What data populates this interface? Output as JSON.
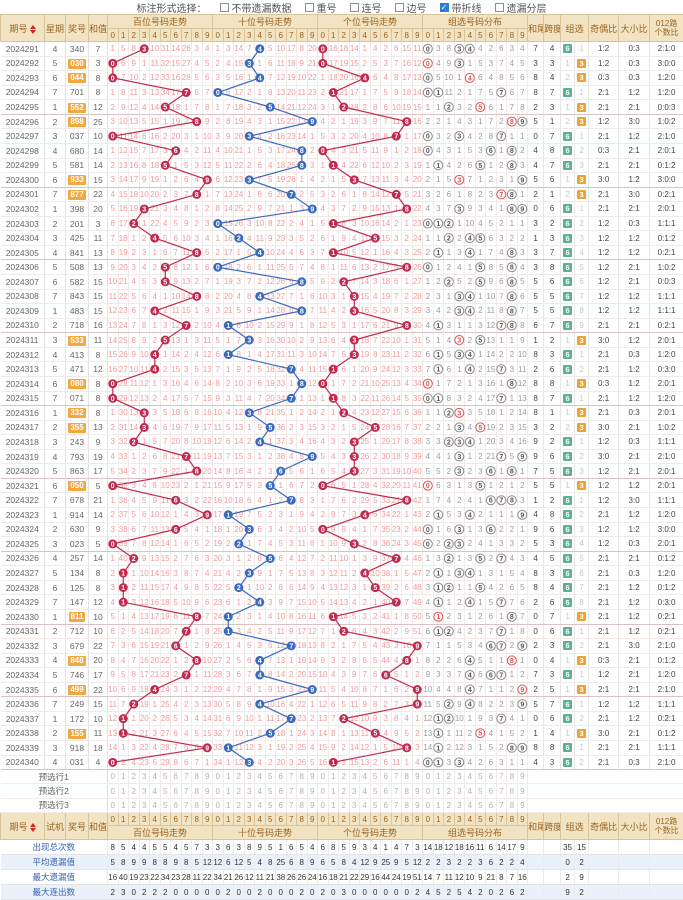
{
  "toolbar": {
    "label": "标注形式选择：",
    "options": [
      {
        "label": "不带遗漏数据",
        "checked": false
      },
      {
        "label": "重号",
        "checked": false
      },
      {
        "label": "连号",
        "checked": false
      },
      {
        "label": "边号",
        "checked": false
      },
      {
        "label": "带折线",
        "checked": true
      },
      {
        "label": "遗漏分层",
        "checked": false
      }
    ]
  },
  "header": {
    "issue": "期号",
    "week": "星期",
    "num": "奖号",
    "sum": "和值",
    "sections": [
      "百位号码走势",
      "十位号码走势",
      "个位号码走势",
      "组选号码分布"
    ],
    "digits": [
      "0",
      "1",
      "2",
      "3",
      "4",
      "5",
      "6",
      "7",
      "8",
      "9"
    ],
    "tail": "和尾",
    "span": "跨度",
    "group": "组选",
    "odd_even": "奇偶比",
    "big_small": "大小比",
    "r012_line1": "012路",
    "r012_line2": "个数比"
  },
  "footer_header": {
    "issue": "期号",
    "week": "试机",
    "num": "奖号",
    "sum": "和值"
  },
  "preselect_rows": [
    "预选行1",
    "预选行2",
    "预选行3"
  ],
  "stats_labels": [
    "出现总次数",
    "平均遗漏值",
    "最大遗漏值",
    "最大连出数"
  ],
  "colors": {
    "red_circle": "#c02a4f",
    "blue_circle": "#3a6abf",
    "miss_pink": "#f09a9a",
    "miss_gray": "#9b9b9b",
    "ring_gray": "#8a8a8a",
    "ring_red": "#e05252",
    "header_bg": "#f2e3c3",
    "header_text": "#9a6420",
    "badge_green": "#5fae96",
    "badge_orange": "#eba338",
    "hl_bg": "#f3a73f",
    "check_blue": "#2e7cd6"
  },
  "chart_data": {
    "type": "table",
    "row_columns": [
      "issue",
      "week",
      "num",
      "sum",
      "tail",
      "span",
      "zu_type",
      "zu_miss",
      "odd_even",
      "big_small",
      "r012"
    ],
    "rows": [
      [
        "2024291",
        "4",
        "340",
        7,
        7,
        4,
        "6",
        1,
        "1:2",
        "0:3",
        "2:1:0"
      ],
      [
        "2024292",
        "5",
        "030",
        3,
        3,
        3,
        "3",
        1,
        "1:2",
        "0:3",
        "3:0:0"
      ],
      [
        "2024293",
        "6",
        "044",
        8,
        8,
        4,
        "3",
        2,
        "0:3",
        "0:3",
        "1:2:0"
      ],
      [
        "2024294",
        "7",
        "701",
        8,
        8,
        7,
        "6",
        1,
        "2:1",
        "1:2",
        "1:2:0"
      ],
      [
        "2024295",
        "1",
        "552",
        12,
        2,
        3,
        "3",
        1,
        "2:1",
        "2:1",
        "0:0:3"
      ],
      [
        "2024296",
        "2",
        "898",
        25,
        5,
        1,
        "3",
        2,
        "1:2",
        "3:0",
        "1:0:2"
      ],
      [
        "2024297",
        "3",
        "037",
        10,
        0,
        7,
        "6",
        1,
        "2:1",
        "1:2",
        "2:1:0"
      ],
      [
        "2024298",
        "4",
        "680",
        14,
        4,
        8,
        "6",
        2,
        "0:3",
        "2:1",
        "2:0:1"
      ],
      [
        "2024299",
        "5",
        "581",
        14,
        4,
        7,
        "6",
        3,
        "2:1",
        "2:1",
        "0:1:2"
      ],
      [
        "2024300",
        "6",
        "933",
        15,
        5,
        6,
        "3",
        1,
        "3:0",
        "1:2",
        "3:0:0"
      ],
      [
        "2024301",
        "7",
        "877",
        22,
        2,
        1,
        "3",
        2,
        "2:1",
        "3:0",
        "0:2:1"
      ],
      [
        "2024302",
        "1",
        "398",
        20,
        0,
        6,
        "6",
        1,
        "2:1",
        "2:1",
        "2:0:1"
      ],
      [
        "2024303",
        "2",
        "201",
        3,
        3,
        2,
        "6",
        2,
        "1:2",
        "0:3",
        "1:1:1"
      ],
      [
        "2024304",
        "3",
        "425",
        11,
        1,
        3,
        "6",
        3,
        "1:2",
        "1:2",
        "0:1:2"
      ],
      [
        "2024305",
        "4",
        "841",
        13,
        3,
        7,
        "6",
        4,
        "1:2",
        "1:2",
        "0:2:1"
      ],
      [
        "2024306",
        "5",
        "508",
        13,
        3,
        8,
        "6",
        5,
        "1:2",
        "2:1",
        "1:0:2"
      ],
      [
        "2024307",
        "6",
        "582",
        15,
        5,
        6,
        "6",
        6,
        "1:2",
        "2:1",
        "0:0:3"
      ],
      [
        "2024308",
        "7",
        "843",
        15,
        5,
        5,
        "6",
        7,
        "1:2",
        "1:2",
        "1:1:1"
      ],
      [
        "2024309",
        "1",
        "483",
        15,
        5,
        5,
        "6",
        8,
        "1:2",
        "1:2",
        "1:1:1"
      ],
      [
        "2024310",
        "2",
        "718",
        16,
        6,
        7,
        "6",
        9,
        "2:1",
        "2:1",
        "0:2:1"
      ],
      [
        "2024311",
        "3",
        "533",
        11,
        1,
        2,
        "3",
        1,
        "3:0",
        "1:2",
        "2:0:1"
      ],
      [
        "2024312",
        "4",
        "413",
        8,
        8,
        3,
        "6",
        1,
        "2:1",
        "0:3",
        "1:2:0"
      ],
      [
        "2024313",
        "5",
        "471",
        12,
        2,
        6,
        "6",
        2,
        "2:1",
        "1:2",
        "0:3:0"
      ],
      [
        "2024314",
        "6",
        "080",
        8,
        8,
        8,
        "3",
        1,
        "0:3",
        "1:2",
        "2:0:1"
      ],
      [
        "2024315",
        "7",
        "071",
        8,
        8,
        7,
        "6",
        1,
        "2:1",
        "1:2",
        "1:2:0"
      ],
      [
        "2024316",
        "1",
        "332",
        8,
        8,
        1,
        "3",
        1,
        "2:1",
        "0:3",
        "2:0:1"
      ],
      [
        "2024317",
        "2",
        "355",
        13,
        3,
        2,
        "3",
        2,
        "3:0",
        "2:1",
        "1:0:2"
      ],
      [
        "2024318",
        "3",
        "243",
        9,
        9,
        2,
        "6",
        1,
        "1:2",
        "0:3",
        "1:1:1"
      ],
      [
        "2024319",
        "4",
        "793",
        19,
        9,
        6,
        "6",
        2,
        "3:0",
        "2:1",
        "2:1:0"
      ],
      [
        "2024320",
        "5",
        "863",
        17,
        7,
        5,
        "6",
        3,
        "1:2",
        "2:1",
        "2:0:1"
      ],
      [
        "2024321",
        "6",
        "050",
        5,
        5,
        5,
        "3",
        1,
        "1:2",
        "1:2",
        "2:0:1"
      ],
      [
        "2024322",
        "7",
        "678",
        21,
        1,
        2,
        "6",
        1,
        "1:2",
        "3:0",
        "1:1:1"
      ],
      [
        "2024323",
        "1",
        "914",
        14,
        4,
        8,
        "6",
        2,
        "2:1",
        "1:2",
        "1:2:0"
      ],
      [
        "2024324",
        "2",
        "630",
        9,
        9,
        6,
        "6",
        3,
        "1:2",
        "1:2",
        "3:0:0"
      ],
      [
        "2024325",
        "3",
        "023",
        5,
        5,
        3,
        "6",
        4,
        "1:2",
        "0:3",
        "2:0:1"
      ],
      [
        "2024326",
        "4",
        "257",
        14,
        4,
        5,
        "6",
        5,
        "2:1",
        "2:1",
        "0:1:2"
      ],
      [
        "2024327",
        "5",
        "134",
        8,
        8,
        3,
        "6",
        6,
        "2:1",
        "0:3",
        "1:2:0"
      ],
      [
        "2024328",
        "6",
        "125",
        8,
        8,
        4,
        "6",
        7,
        "2:1",
        "1:2",
        "0:1:2"
      ],
      [
        "2024329",
        "7",
        "147",
        12,
        2,
        6,
        "6",
        8,
        "2:1",
        "1:2",
        "0:3:0"
      ],
      [
        "2024330",
        "1",
        "811",
        10,
        0,
        7,
        "3",
        1,
        "2:1",
        "1:2",
        "0:2:1"
      ],
      [
        "2024331",
        "2",
        "712",
        10,
        0,
        6,
        "6",
        1,
        "2:1",
        "1:2",
        "0:2:1"
      ],
      [
        "2024332",
        "3",
        "679",
        22,
        2,
        3,
        "6",
        2,
        "2:1",
        "3:0",
        "2:1:0"
      ],
      [
        "2024333",
        "4",
        "848",
        20,
        0,
        4,
        "3",
        1,
        "0:3",
        "2:1",
        "0:1:2"
      ],
      [
        "2024334",
        "5",
        "746",
        17,
        7,
        3,
        "6",
        1,
        "1:2",
        "2:1",
        "1:2:0"
      ],
      [
        "2024335",
        "6",
        "499",
        22,
        2,
        5,
        "3",
        1,
        "2:1",
        "2:1",
        "2:1:0"
      ],
      [
        "2024336",
        "7",
        "249",
        15,
        5,
        7,
        "6",
        1,
        "1:2",
        "1:2",
        "1:1:1"
      ],
      [
        "2024337",
        "1",
        "172",
        10,
        0,
        6,
        "6",
        2,
        "2:1",
        "1:2",
        "0:2:1"
      ],
      [
        "2024338",
        "2",
        "155",
        11,
        1,
        4,
        "3",
        1,
        "3:0",
        "2:1",
        "0:1:2"
      ],
      [
        "2024339",
        "3",
        "918",
        18,
        8,
        8,
        "6",
        1,
        "2:1",
        "2:1",
        "1:1:1"
      ],
      [
        "2024340",
        "4",
        "031",
        4,
        4,
        3,
        "6",
        2,
        "2:1",
        "0:3",
        "2:1:0"
      ]
    ],
    "initial_miss": {
      "bai": [
        0,
        4,
        7,
        0,
        9,
        30,
        13,
        25,
        2,
        3
      ],
      "shi": [
        0,
        2,
        13,
        6,
        0,
        4,
        9,
        16,
        7,
        19
      ],
      "ge": [
        0,
        15,
        17,
        13,
        0,
        3,
        1,
        5,
        14,
        10
      ],
      "zu": [
        0,
        2,
        7,
        0,
        0,
        3,
        1,
        5,
        2,
        3
      ]
    },
    "stats": [
      {
        "label": "出现总次数",
        "bai": [
          8,
          5,
          4,
          4,
          5,
          5,
          4,
          5,
          7,
          3
        ],
        "shi": [
          3,
          6,
          3,
          8,
          9,
          5,
          1,
          6,
          5,
          4
        ],
        "ge": [
          6,
          8,
          5,
          9,
          3,
          4,
          1,
          4,
          7,
          3
        ],
        "zu": [
          14,
          18,
          12,
          18,
          16,
          11,
          6,
          14,
          17,
          9
        ],
        "group": [
          35,
          15
        ]
      },
      {
        "label": "平均遗漏值",
        "bai": [
          5,
          8,
          9,
          9,
          8,
          8,
          9,
          8,
          5,
          12
        ],
        "shi": [
          12,
          6,
          12,
          5,
          4,
          8,
          25,
          6,
          8,
          9
        ],
        "ge": [
          6,
          5,
          8,
          4,
          12,
          9,
          25,
          9,
          5,
          12
        ],
        "zu": [
          2,
          2,
          3,
          2,
          2,
          3,
          6,
          2,
          2,
          4
        ],
        "group": [
          0,
          2
        ]
      },
      {
        "label": "最大遗漏值",
        "bai": [
          16,
          40,
          19,
          23,
          22,
          34,
          23,
          28,
          11,
          22
        ],
        "shi": [
          34,
          21,
          26,
          12,
          11,
          21,
          38,
          26,
          26,
          24
        ],
        "ge": [
          16,
          18,
          21,
          22,
          29,
          16,
          44,
          24,
          19,
          51
        ],
        "zu": [
          14,
          7,
          11,
          12,
          10,
          9,
          21,
          8,
          7,
          16
        ],
        "group": [
          2,
          9
        ]
      },
      {
        "label": "最大连出数",
        "bai": [
          2,
          3,
          0,
          2,
          2,
          2,
          0,
          0,
          0,
          0
        ],
        "shi": [
          0,
          2,
          0,
          0,
          2,
          0,
          0,
          0,
          2,
          0
        ],
        "ge": [
          2,
          0,
          3,
          0,
          0,
          0,
          0,
          0,
          0,
          2
        ],
        "zu": [
          4,
          5,
          2,
          5,
          4,
          2,
          0,
          2,
          6,
          2
        ],
        "group": [
          9,
          2
        ]
      }
    ]
  }
}
